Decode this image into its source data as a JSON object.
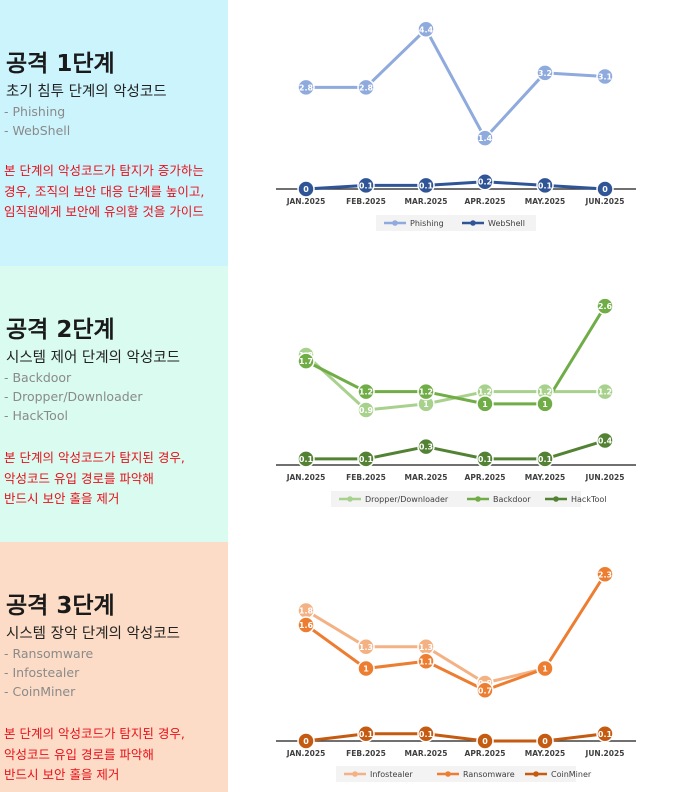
{
  "stages": [
    {
      "title": "공격 1단계",
      "subtitle": "초기 침투 단계의 악성코드",
      "items": [
        "- Phishing",
        "- WebShell"
      ],
      "note": [
        "본 단계의 악성코드가 탐지가 증가하는",
        "경우, 조직의 보안 대응 단계를 높이고,",
        "임직원에게 보안에 유의할 것을 가이드"
      ],
      "panel_color": "#ccf4fd"
    },
    {
      "title": "공격 2단계",
      "subtitle": "시스템 제어 단계의 악성코드",
      "items": [
        "- Backdoor",
        "- Dropper/Downloader",
        "- HackTool"
      ],
      "note": [
        "본 단계의 악성코드가 탐지된 경우,",
        "악성코드 유입 경로를 파악해",
        "반드시 보안 홀을 제거"
      ],
      "panel_color": "#d9fbf0"
    },
    {
      "title": "공격 3단계",
      "subtitle": "시스템 장악 단계의 악성코드",
      "items": [
        "- Ransomware",
        "- Infostealer",
        "- CoinMiner"
      ],
      "note": [
        "본 단계의 악성코드가 탐지된 경우,",
        "악성코드 유입 경로를 파악해",
        "반드시 보안 홀을 제거"
      ],
      "panel_color": "#fcdcc6"
    }
  ],
  "chart_data": [
    {
      "type": "line",
      "categories": [
        "JAN.2025",
        "FEB.2025",
        "MAR.2025",
        "APR.2025",
        "MAY.2025",
        "JUN.2025"
      ],
      "series": [
        {
          "name": "Phishing",
          "values": [
            2.8,
            2.8,
            4.4,
            1.4,
            3.2,
            3.1
          ],
          "color": "#8faadc"
        },
        {
          "name": "WebShell",
          "values": [
            0,
            0.1,
            0.1,
            0.2,
            0.1,
            0
          ],
          "color": "#2f5597"
        }
      ],
      "legend": "bottom",
      "ylim": [
        0,
        4.6
      ]
    },
    {
      "type": "line",
      "categories": [
        "JAN.2025",
        "FEB.2025",
        "MAR.2025",
        "APR.2025",
        "MAY.2025",
        "JUN.2025"
      ],
      "series": [
        {
          "name": "Dropper/Downloader",
          "values": [
            1.8,
            0.9,
            1,
            1.2,
            1.2,
            1.2
          ],
          "color": "#a9d18e"
        },
        {
          "name": "Backdoor",
          "values": [
            1.7,
            1.2,
            1.2,
            1,
            1,
            2.6
          ],
          "color": "#70ad47"
        },
        {
          "name": "HackTool",
          "values": [
            0.1,
            0.1,
            0.3,
            0.1,
            0.1,
            0.4
          ],
          "color": "#548235"
        }
      ],
      "legend": "bottom",
      "ylim": [
        0,
        2.7
      ]
    },
    {
      "type": "line",
      "categories": [
        "JAN.2025",
        "FEB.2025",
        "MAR.2025",
        "APR.2025",
        "MAY.2025",
        "JUN.2025"
      ],
      "series": [
        {
          "name": "Infostealer",
          "values": [
            1.8,
            1.3,
            1.3,
            0.8,
            1,
            null
          ],
          "color": "#f4b183"
        },
        {
          "name": "Ransomware",
          "values": [
            1.6,
            1,
            1.1,
            0.7,
            1,
            2.3
          ],
          "color": "#ed7d31"
        },
        {
          "name": "CoinMiner",
          "values": [
            0,
            0.1,
            0.1,
            0,
            0,
            0.1
          ],
          "color": "#c55a11"
        }
      ],
      "legend": "bottom",
      "ylim": [
        0,
        2.4
      ]
    }
  ]
}
